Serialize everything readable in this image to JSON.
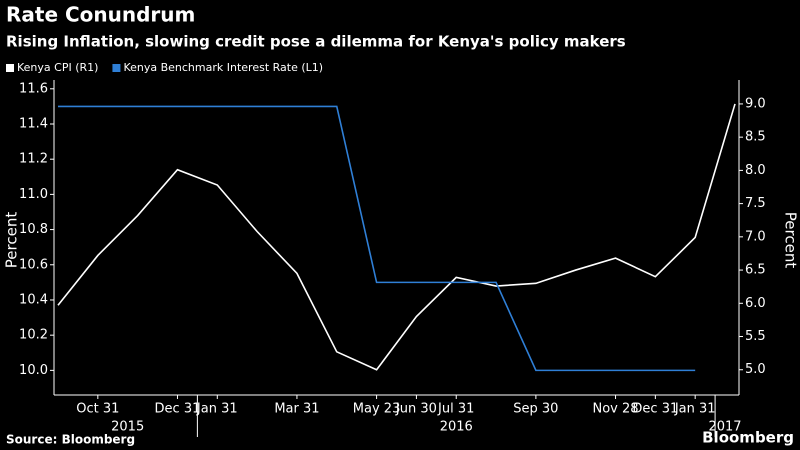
{
  "chart_data": {
    "type": "line",
    "title": "Rate Conundrum",
    "subtitle": "Rising Inflation, slowing credit pose a dilemma for Kenya's policy makers",
    "ylabel": "Percent",
    "y2label": "Percent",
    "source": "Source: Bloomberg",
    "brand": "Bloomberg",
    "categories": [
      null,
      "Oct 31",
      null,
      "Dec 31",
      "Jan 31",
      null,
      "Mar 31",
      null,
      "May 23",
      "Jun 30",
      "Jul 31",
      null,
      "Sep 30",
      null,
      "Nov 28",
      "Dec 31",
      "Jan 31",
      null
    ],
    "year_labels": [
      "2015",
      "2016",
      "2017"
    ],
    "series": [
      {
        "name": "Kenya CPI (R1)",
        "color": "#ffffff",
        "axis": "y2",
        "values": [
          5.97,
          6.72,
          7.32,
          8.01,
          7.78,
          7.08,
          6.45,
          5.27,
          5.0,
          5.8,
          6.39,
          6.26,
          6.3,
          6.5,
          6.68,
          6.4,
          6.99,
          9.0
        ]
      },
      {
        "name": "Kenya Benchmark Interest Rate (L1)",
        "color": "#2f7fd6",
        "axis": "y",
        "values": [
          11.5,
          11.5,
          11.5,
          11.5,
          11.5,
          11.5,
          11.5,
          11.5,
          10.5,
          10.5,
          10.5,
          10.5,
          10.0,
          10.0,
          10.0,
          10.0,
          10.0,
          null
        ]
      }
    ],
    "ylim": [
      9.86,
      11.65
    ],
    "yticks": [
      {
        "value": 10.0,
        "label": "10.0"
      },
      10.2,
      10.4,
      10.6,
      10.8,
      {
        "value": 11.0,
        "label": "11.0"
      },
      11.2,
      11.4,
      11.6
    ],
    "y2lim": [
      4.62,
      9.36
    ],
    "y2ticks": [
      {
        "value": 5.0,
        "label": "5.0"
      },
      5.5,
      {
        "value": 6.0,
        "label": "6.0"
      },
      6.5,
      {
        "value": 7.0,
        "label": "7.0"
      },
      7.5,
      {
        "value": 8.0,
        "label": "8.0"
      },
      8.5,
      {
        "value": 9.0,
        "label": "9.0"
      }
    ],
    "grid": false,
    "legend": "top-left"
  }
}
